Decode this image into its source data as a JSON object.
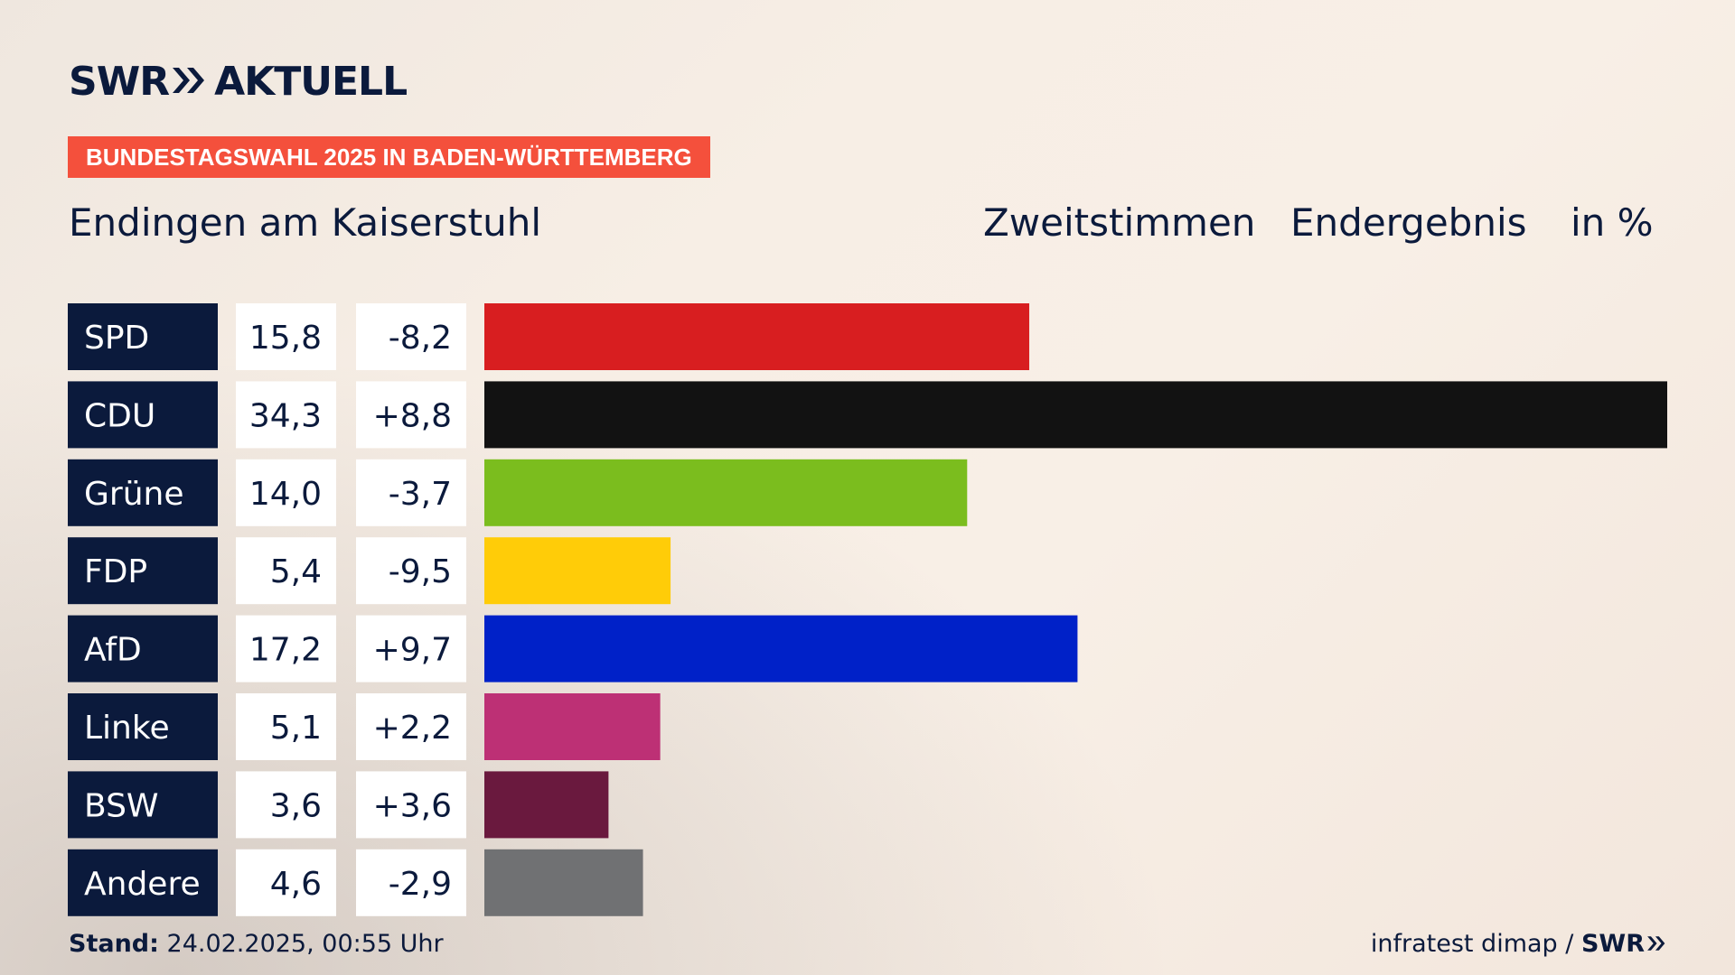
{
  "brand": {
    "logo_left": "SWR",
    "logo_right": "AKTUELL",
    "footer_logo": "SWR"
  },
  "header": {
    "badge": "BUNDESTAGSWAHL 2025 IN BADEN-WÜRTTEMBERG",
    "place": "Endingen am Kaiserstuhl",
    "vote_type": "Zweitstimmen",
    "result_type": "Endergebnis",
    "unit": "in %"
  },
  "footer": {
    "stand_label": "Stand:",
    "stand_value": "24.02.2025, 00:55 Uhr",
    "source": "infratest dimap /"
  },
  "chart_data": {
    "type": "bar",
    "orientation": "horizontal",
    "unit": "%",
    "categories": [
      "SPD",
      "CDU",
      "Grüne",
      "FDP",
      "AfD",
      "Linke",
      "BSW",
      "Andere"
    ],
    "values": [
      15.8,
      34.3,
      14.0,
      5.4,
      17.2,
      5.1,
      3.6,
      4.6
    ],
    "value_labels": [
      "15,8",
      "34,3",
      "14,0",
      "5,4",
      "17,2",
      "5,1",
      "3,6",
      "4,6"
    ],
    "changes": [
      -8.2,
      8.8,
      -3.7,
      -9.5,
      9.7,
      2.2,
      3.6,
      -2.9
    ],
    "change_labels": [
      "-8,2",
      "+8,8",
      "-3,7",
      "-9,5",
      "+9,7",
      "+2,2",
      "+3,6",
      "-2,9"
    ],
    "colors": [
      "#d81e20",
      "#121212",
      "#7bbd1e",
      "#ffcc08",
      "#0021c8",
      "#bd3075",
      "#6a193e",
      "#707173"
    ],
    "xlim": [
      0,
      34.3
    ]
  }
}
